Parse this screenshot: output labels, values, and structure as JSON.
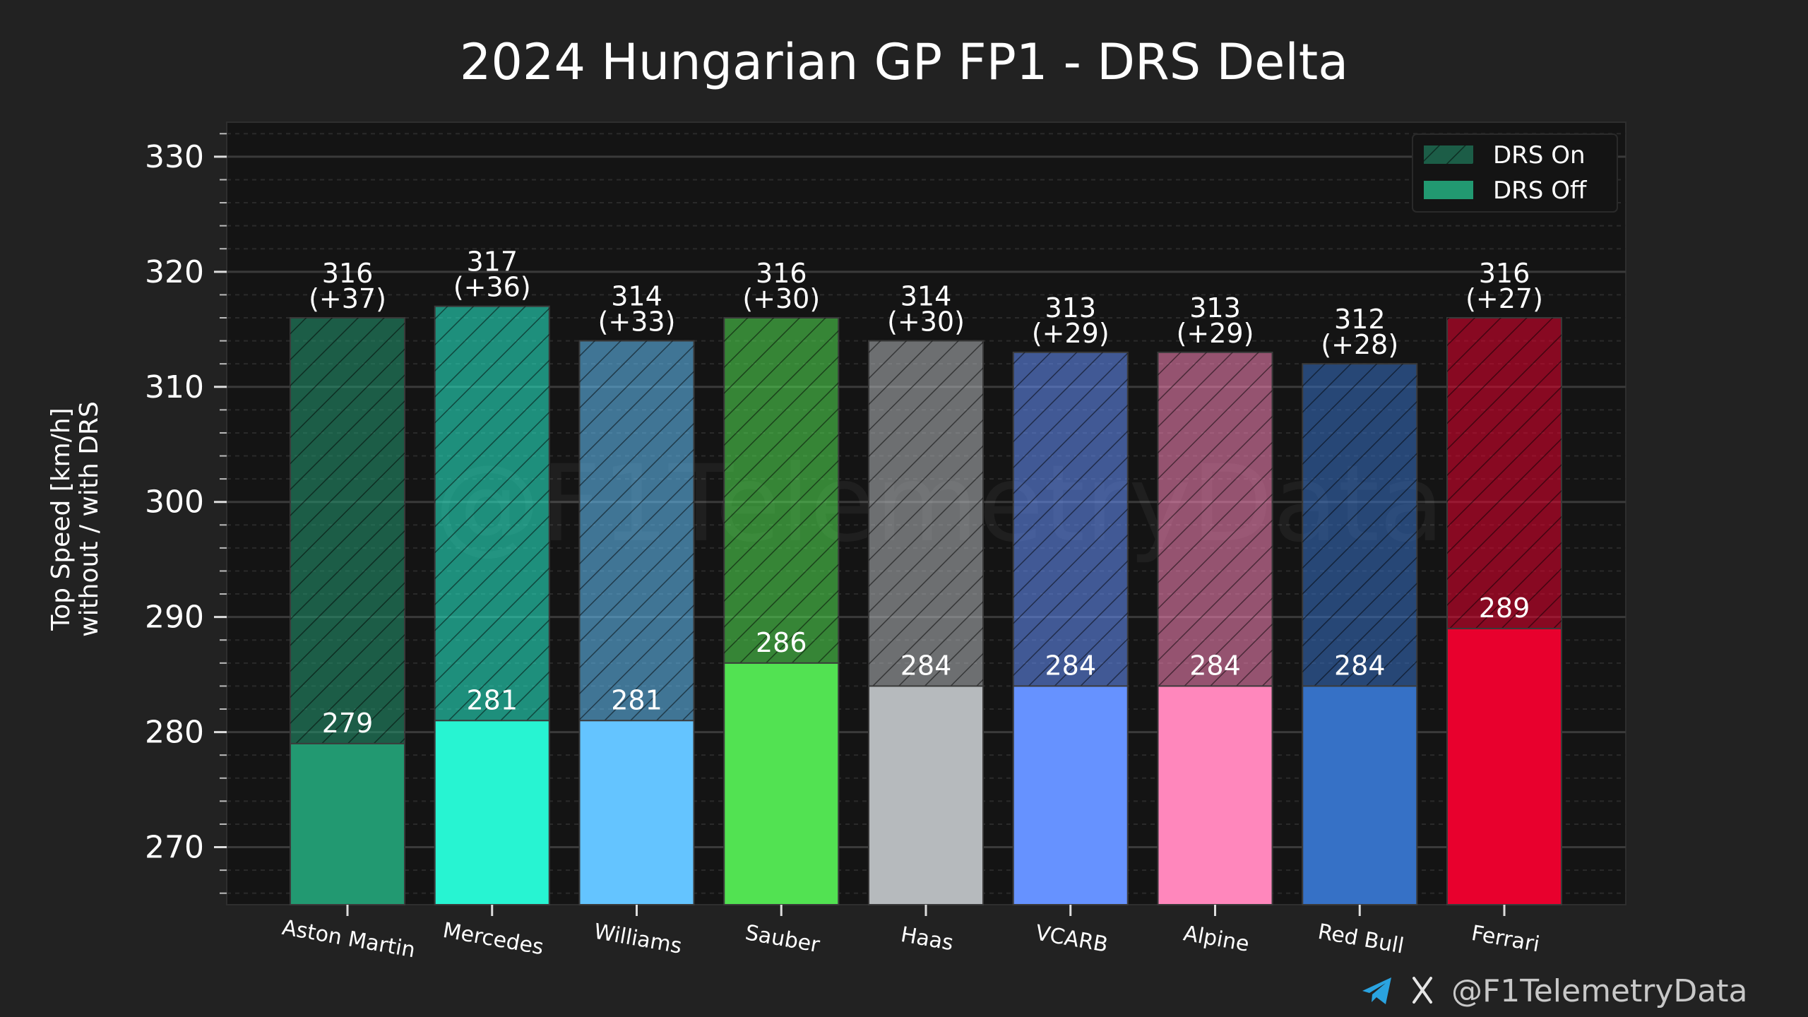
{
  "chart_data": {
    "type": "bar",
    "title": "2024 Hungarian GP FP1 - DRS Delta",
    "xlabel": "",
    "ylabel_lines": [
      "Top Speed [km/h]",
      "without / with DRS"
    ],
    "ylim": [
      265,
      333
    ],
    "yticks": [
      270,
      280,
      290,
      300,
      310,
      320,
      330
    ],
    "grid": true,
    "legend_position": "top-right",
    "categories": [
      "Aston Martin",
      "Mercedes",
      "Williams",
      "Sauber",
      "Haas",
      "VCARB",
      "Alpine",
      "Red Bull",
      "Ferrari"
    ],
    "series": [
      {
        "name": "DRS On",
        "values": [
          316,
          317,
          314,
          316,
          314,
          313,
          313,
          312,
          316
        ]
      },
      {
        "name": "DRS Off",
        "values": [
          279,
          281,
          281,
          286,
          284,
          284,
          284,
          284,
          289
        ]
      }
    ],
    "deltas": [
      "(+37)",
      "(+36)",
      "(+33)",
      "(+30)",
      "(+30)",
      "(+29)",
      "(+29)",
      "(+28)",
      "(+27)"
    ],
    "team_colors": [
      "#229971",
      "#27F4D2",
      "#64C4FF",
      "#52E252",
      "#B6BABD",
      "#6692FF",
      "#FF87BC",
      "#3671C6",
      "#E8002D"
    ],
    "legend_color": "#229971"
  },
  "watermark": "@F1TelemetryData",
  "footer": {
    "handle": "@F1TelemetryData",
    "icons": [
      "telegram-icon",
      "x-icon"
    ]
  }
}
